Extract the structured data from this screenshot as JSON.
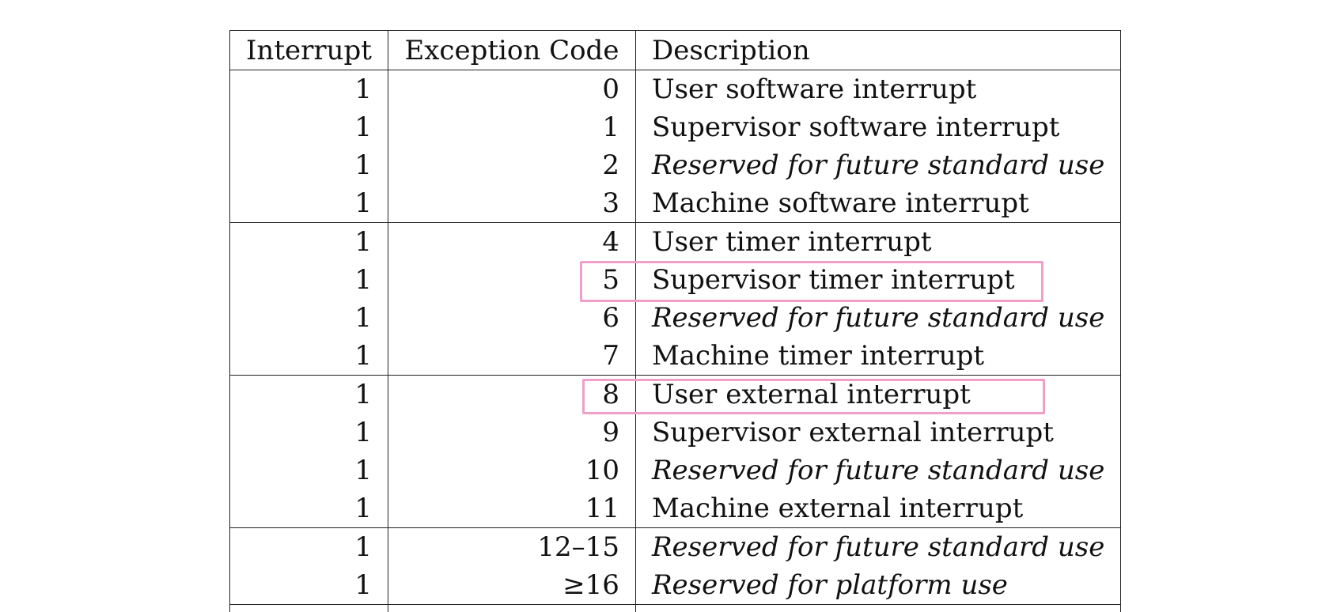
{
  "table": {
    "headers": {
      "interrupt": "Interrupt",
      "exception_code": "Exception Code",
      "description": "Description"
    },
    "rows": [
      {
        "interrupt": "1",
        "code": "0",
        "description": "User software interrupt",
        "italic": false
      },
      {
        "interrupt": "1",
        "code": "1",
        "description": "Supervisor software interrupt",
        "italic": false
      },
      {
        "interrupt": "1",
        "code": "2",
        "description": "Reserved for future standard use",
        "italic": true
      },
      {
        "interrupt": "1",
        "code": "3",
        "description": "Machine software interrupt",
        "italic": false
      },
      {
        "interrupt": "1",
        "code": "4",
        "description": "User timer interrupt",
        "italic": false
      },
      {
        "interrupt": "1",
        "code": "5",
        "description": "Supervisor timer interrupt",
        "italic": false
      },
      {
        "interrupt": "1",
        "code": "6",
        "description": "Reserved for future standard use",
        "italic": true
      },
      {
        "interrupt": "1",
        "code": "7",
        "description": "Machine timer interrupt",
        "italic": false
      },
      {
        "interrupt": "1",
        "code": "8",
        "description": "User external interrupt",
        "italic": false
      },
      {
        "interrupt": "1",
        "code": "9",
        "description": "Supervisor external interrupt",
        "italic": false
      },
      {
        "interrupt": "1",
        "code": "10",
        "description": "Reserved for future standard use",
        "italic": true
      },
      {
        "interrupt": "1",
        "code": "11",
        "description": "Machine external interrupt",
        "italic": false
      },
      {
        "interrupt": "1",
        "code": "12–15",
        "description": "Reserved for future standard use",
        "italic": true
      },
      {
        "interrupt": "1",
        "code": "≥16",
        "description": "Reserved for platform use",
        "italic": true
      }
    ]
  },
  "highlight_color": "#f0a0c8"
}
